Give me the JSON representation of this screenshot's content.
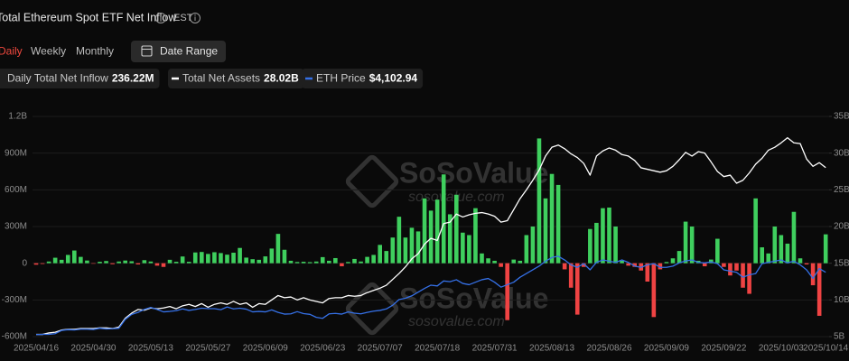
{
  "controls": {
    "tabs": [
      "Daily",
      "Weekly",
      "Monthly"
    ],
    "active_tab": "Daily",
    "date_range": "Date Range",
    "timezone": "EST"
  },
  "watermark": {
    "brand": "SoSoValue",
    "url": "sosovalue.com"
  },
  "chart_data": {
    "type": "combo",
    "title": "Total Ethereum Spot ETF Net Inflow",
    "categories": [
      "2025/04/16",
      null,
      null,
      null,
      null,
      null,
      null,
      null,
      null,
      "2025/04/30",
      null,
      null,
      null,
      null,
      null,
      null,
      null,
      null,
      "2025/05/13",
      null,
      null,
      null,
      null,
      null,
      null,
      null,
      null,
      "2025/05/27",
      null,
      null,
      null,
      null,
      null,
      null,
      null,
      null,
      "2025/06/09",
      null,
      null,
      null,
      null,
      null,
      null,
      null,
      null,
      "2025/06/23",
      null,
      null,
      null,
      null,
      null,
      null,
      null,
      null,
      "2025/07/07",
      null,
      null,
      null,
      null,
      null,
      null,
      null,
      null,
      "2025/07/18",
      null,
      null,
      null,
      null,
      null,
      null,
      null,
      null,
      "2025/07/31",
      null,
      null,
      null,
      null,
      null,
      null,
      null,
      null,
      "2025/08/13",
      null,
      null,
      null,
      null,
      null,
      null,
      null,
      null,
      "2025/08/26",
      null,
      null,
      null,
      null,
      null,
      null,
      null,
      null,
      "2025/09/09",
      null,
      null,
      null,
      null,
      null,
      null,
      null,
      null,
      "2025/09/22",
      null,
      null,
      null,
      null,
      null,
      null,
      null,
      null,
      "2025/10/03",
      null,
      null,
      null,
      null,
      null,
      null,
      "2025/10/14"
    ],
    "ylim": [
      -600,
      1200
    ],
    "yticks": [
      {
        "value": 1200,
        "label": "1.2B"
      },
      {
        "value": 900,
        "label": "900M"
      },
      {
        "value": 600,
        "label": "600M"
      },
      {
        "value": 300,
        "label": "300M"
      },
      0,
      {
        "value": -300,
        "label": "-300M"
      },
      {
        "value": -600,
        "label": "-600M"
      }
    ],
    "y2lim": [
      5,
      35
    ],
    "y2ticks": [
      {
        "value": 35,
        "label": "35B"
      },
      {
        "value": 30,
        "label": "30B"
      },
      {
        "value": 25,
        "label": "25B"
      },
      {
        "value": 20,
        "label": "20B"
      },
      {
        "value": 15,
        "label": "15B"
      },
      {
        "value": 10,
        "label": "10B"
      },
      {
        "value": 5,
        "label": "5B"
      }
    ],
    "y3lim": [
      1500,
      10400
    ],
    "grid": true,
    "series": [
      {
        "name": "Daily Total Net Inflow",
        "type": "bar",
        "color": "#3fcf5e",
        "negative_color": "#ef4343",
        "current": "236.22M",
        "values": [
          -12,
          -6,
          14,
          45,
          28,
          68,
          104,
          52,
          22,
          -4,
          12,
          18,
          -8,
          14,
          22,
          16,
          -10,
          25,
          14,
          -20,
          -30,
          28,
          12,
          55,
          12,
          88,
          92,
          76,
          90,
          83,
          70,
          86,
          125,
          46,
          33,
          28,
          56,
          120,
          240,
          110,
          20,
          10,
          12,
          9,
          14,
          50,
          20,
          42,
          -25,
          10,
          35,
          14,
          52,
          68,
          150,
          100,
          210,
          380,
          210,
          290,
          260,
          530,
          430,
          520,
          726,
          400,
          560,
          250,
          230,
          450,
          80,
          40,
          20,
          -30,
          -465,
          30,
          20,
          230,
          300,
          1020,
          530,
          730,
          640,
          -50,
          -200,
          -420,
          -30,
          280,
          330,
          450,
          455,
          300,
          20,
          -20,
          -30,
          -60,
          -150,
          -440,
          -50,
          10,
          40,
          100,
          340,
          300,
          20,
          -25,
          30,
          200,
          -30,
          -100,
          -60,
          -200,
          -250,
          530,
          130,
          80,
          300,
          230,
          160,
          420,
          40,
          -10,
          -180,
          -430,
          236.22
        ]
      },
      {
        "name": "Total Net Assets",
        "type": "line",
        "axis": "y2",
        "color": "#ffffff",
        "current": "28.02B",
        "values": [
          5.3,
          5.3,
          5.5,
          5.6,
          5.9,
          6.0,
          6.0,
          6.1,
          6.1,
          6.1,
          6.2,
          6.2,
          6.1,
          6.3,
          7.5,
          8.2,
          8.7,
          8.6,
          8.9,
          8.8,
          8.9,
          9.1,
          8.8,
          9.2,
          9.4,
          9.1,
          9.5,
          9.0,
          9.4,
          9.6,
          9.4,
          9.8,
          9.4,
          9.6,
          9.0,
          9.5,
          9.4,
          10.0,
          10.6,
          10.3,
          10.4,
          10.0,
          10.3,
          10.0,
          9.8,
          9.6,
          10.2,
          10.3,
          10.3,
          10.6,
          10.5,
          10.6,
          11.0,
          11.3,
          11.6,
          12.0,
          12.8,
          13.6,
          14.5,
          15.6,
          16.3,
          17.6,
          18.4,
          18.1,
          20.4,
          20.6,
          21.7,
          21.3,
          21.6,
          21.8,
          21.9,
          21.7,
          21.4,
          20.6,
          20.8,
          22.3,
          23.8,
          25.0,
          26.3,
          27.7,
          29.6,
          30.8,
          31.1,
          30.6,
          29.9,
          29.4,
          28.6,
          27.0,
          29.6,
          30.3,
          30.7,
          30.4,
          29.8,
          29.6,
          29.0,
          28.0,
          27.8,
          27.6,
          27.4,
          27.6,
          28.2,
          29.1,
          30.1,
          29.6,
          30.2,
          30.0,
          28.8,
          27.5,
          26.8,
          27.0,
          25.9,
          26.3,
          27.3,
          28.5,
          29.3,
          30.4,
          30.8,
          31.4,
          32.1,
          31.4,
          31.3,
          29.2,
          28.2,
          28.7,
          28.02
        ]
      },
      {
        "name": "ETH Price",
        "type": "line",
        "axis": "y3",
        "color": "#3570e6",
        "current": "$4,102.94",
        "values": [
          1580,
          1590,
          1590,
          1620,
          1750,
          1780,
          1770,
          1800,
          1800,
          1790,
          1840,
          1810,
          1820,
          1840,
          2200,
          2400,
          2480,
          2600,
          2680,
          2600,
          2500,
          2520,
          2550,
          2620,
          2560,
          2600,
          2650,
          2630,
          2630,
          2590,
          2700,
          2620,
          2650,
          2610,
          2500,
          2520,
          2500,
          2580,
          2480,
          2410,
          2420,
          2510,
          2430,
          2400,
          2280,
          2240,
          2420,
          2440,
          2410,
          2500,
          2450,
          2420,
          2480,
          2530,
          2560,
          2620,
          2770,
          3000,
          3050,
          3150,
          3300,
          3450,
          3580,
          3550,
          3750,
          3720,
          3800,
          3650,
          3600,
          3700,
          3800,
          3850,
          3700,
          3500,
          3600,
          3700,
          3900,
          4050,
          4200,
          4350,
          4550,
          4700,
          4750,
          4600,
          4400,
          4300,
          4450,
          4200,
          4500,
          4600,
          4550,
          4500,
          4600,
          4500,
          4350,
          4300,
          4400,
          4450,
          4300,
          4300,
          4350,
          4480,
          4560,
          4600,
          4500,
          4480,
          4520,
          4450,
          4200,
          4150,
          4100,
          3900,
          4000,
          4050,
          4450,
          4500,
          4550,
          4600,
          4480,
          4550,
          4400,
          4200,
          3850,
          4250,
          4102.94
        ]
      }
    ]
  }
}
